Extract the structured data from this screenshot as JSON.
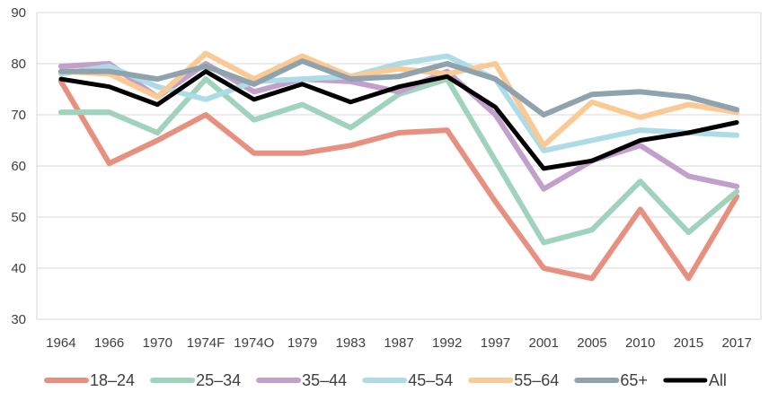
{
  "chart_data": {
    "type": "line",
    "title": "",
    "xlabel": "",
    "ylabel": "",
    "ylim": [
      30,
      90
    ],
    "yticks": [
      30,
      40,
      50,
      60,
      70,
      80,
      90
    ],
    "grid": "horizontal",
    "legend_position": "bottom",
    "categories": [
      "1964",
      "1966",
      "1970",
      "1974F",
      "1974O",
      "1979",
      "1983",
      "1987",
      "1992",
      "1997",
      "2001",
      "2005",
      "2010",
      "2015",
      "2017"
    ],
    "series": [
      {
        "name": "18–24",
        "color": "#E8907F",
        "width": 6,
        "values": [
          76.5,
          60.5,
          65,
          70,
          62.5,
          62.5,
          64,
          66.5,
          67,
          53,
          40,
          38,
          51.5,
          38,
          54
        ]
      },
      {
        "name": "25–34",
        "color": "#9FD3BB",
        "width": 6,
        "values": [
          70.5,
          70.5,
          66.5,
          77,
          69,
          72,
          67.5,
          74,
          77,
          61,
          45,
          47.5,
          57,
          47,
          55
        ]
      },
      {
        "name": "35–44",
        "color": "#C3A0CC",
        "width": 6,
        "values": [
          79.5,
          80,
          73.5,
          80,
          74.5,
          77,
          76.5,
          74.5,
          78.5,
          70,
          55.5,
          61,
          64,
          58,
          56
        ]
      },
      {
        "name": "45–54",
        "color": "#ADDCE6",
        "width": 6,
        "values": [
          78,
          79.5,
          75.5,
          73,
          76.5,
          77,
          77.5,
          80,
          81.5,
          77,
          63,
          65,
          67,
          66.5,
          66
        ]
      },
      {
        "name": "55–64",
        "color": "#FAC994",
        "width": 6,
        "values": [
          78.5,
          78,
          73.5,
          82,
          77,
          81.5,
          77.5,
          79,
          78,
          80,
          64,
          72.5,
          69.5,
          72,
          70.5
        ]
      },
      {
        "name": "65+",
        "color": "#8FA3AF",
        "width": 6,
        "values": [
          78.5,
          78.5,
          77,
          79.5,
          76,
          80.5,
          77,
          77.5,
          80,
          77,
          70,
          74,
          74.5,
          73.5,
          71
        ]
      },
      {
        "name": "All",
        "color": "#000000",
        "width": 5,
        "values": [
          77,
          75.5,
          72,
          78.5,
          73,
          76,
          72.5,
          75.5,
          77.5,
          71.5,
          59.5,
          61,
          65,
          66.5,
          68.5
        ]
      }
    ]
  }
}
